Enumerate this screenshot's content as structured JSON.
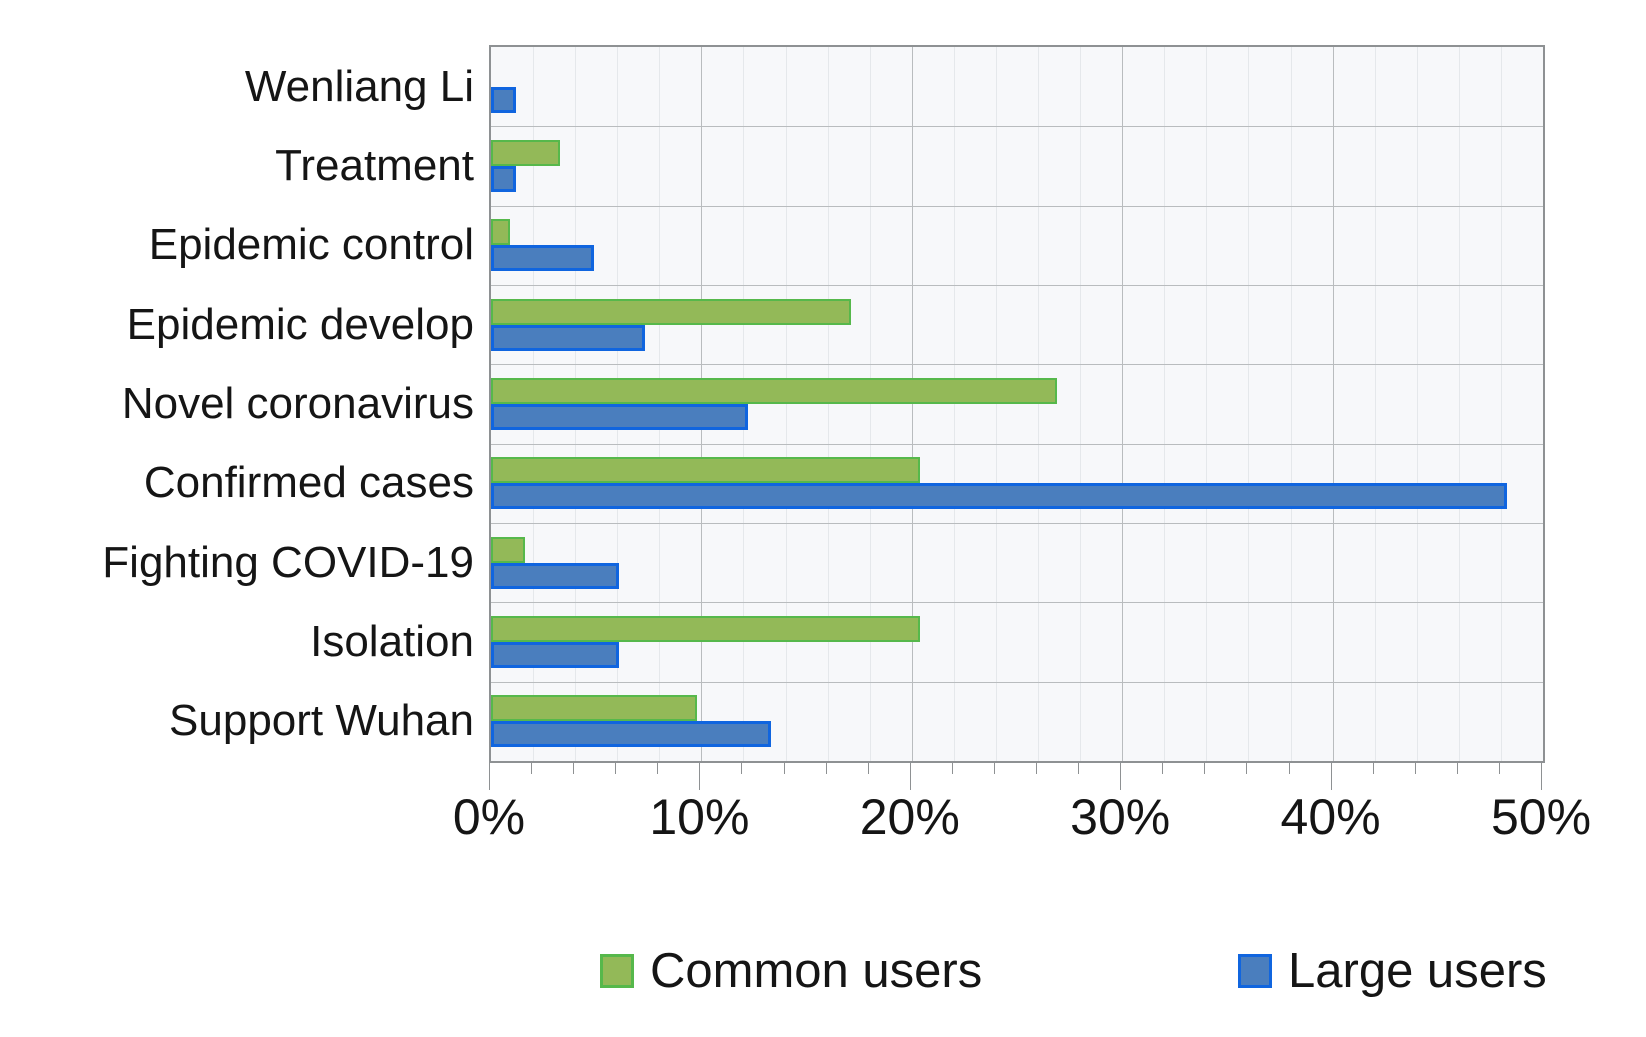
{
  "chart_data": {
    "type": "bar",
    "orientation": "horizontal",
    "title": "",
    "xlabel": "",
    "ylabel": "",
    "categories": [
      "Wenliang Li",
      "Treatment",
      "Epidemic control",
      "Epidemic develop",
      "Novel coronavirus",
      "Confirmed cases",
      "Fighting COVID-19",
      "Isolation",
      "Support Wuhan"
    ],
    "series": [
      {
        "name": "Common users",
        "fill_color": "#93b958",
        "border_color": "#56b84b",
        "values": [
          0,
          3.3,
          0.9,
          17.1,
          26.9,
          20.4,
          1.6,
          20.4,
          9.8
        ]
      },
      {
        "name": "Large users",
        "fill_color": "#4a7ebe",
        "border_color": "#1065df",
        "values": [
          1.2,
          1.2,
          4.9,
          7.3,
          12.2,
          48.3,
          6.1,
          6.1,
          13.3
        ]
      }
    ],
    "xlim": [
      0,
      50
    ],
    "x_ticks": [
      "0%",
      "10%",
      "20%",
      "30%",
      "40%",
      "50%"
    ],
    "x_tick_values": [
      0,
      10,
      20,
      30,
      40,
      50
    ],
    "minor_tick_step": 2,
    "grid": true,
    "legend_position": "bottom",
    "colors": {
      "plot_background": "#f7f8fa",
      "minor_grid": "#e5e8eb",
      "major_grid": "#b9bcbe",
      "frame": "#8e9193",
      "text": "#151515"
    }
  }
}
